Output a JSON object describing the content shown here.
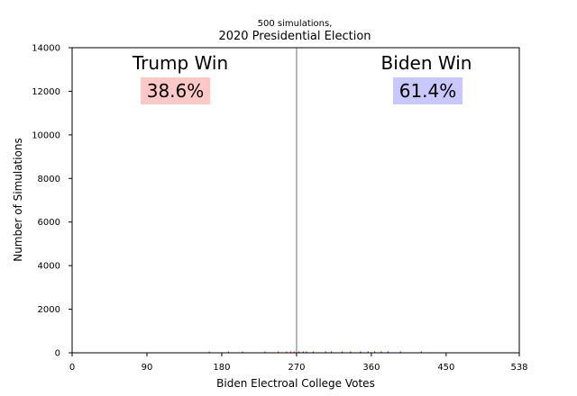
{
  "chart_data": {
    "type": "bar",
    "supertitle": "500 simulations,",
    "title": "2020 Presidential Election",
    "xlabel": "Biden Electroal College Votes",
    "ylabel": "Number of Simulations",
    "xlim": [
      0,
      538
    ],
    "ylim": [
      0,
      14000
    ],
    "xticks": [
      0,
      90,
      180,
      270,
      360,
      450,
      538
    ],
    "yticks": [
      0,
      2000,
      4000,
      6000,
      8000,
      10000,
      12000,
      14000
    ],
    "threshold": 270,
    "threshold_color": "#a0a0a0",
    "grid": false,
    "left_label": "Trump Win",
    "left_pct": "38.6%",
    "left_color": "#ffc8c8",
    "right_label": "Biden Win",
    "right_pct": "61.4%",
    "right_color": "#c8c8ff",
    "bar_color_trump": "#ff0000",
    "bar_color_biden": "#0000ff",
    "series": [
      {
        "name": "Trump",
        "color": "#ff0000",
        "x": [
          165,
          188,
          205,
          232,
          248,
          258,
          263,
          267
        ],
        "y": [
          4,
          3,
          6,
          5,
          7,
          9,
          8,
          6
        ]
      },
      {
        "name": "Biden",
        "color": "#0000ff",
        "x": [
          273,
          278,
          282,
          290,
          305,
          312,
          325,
          335,
          347,
          356,
          364,
          372,
          380,
          395,
          420
        ],
        "y": [
          12,
          8,
          10,
          9,
          11,
          8,
          12,
          7,
          10,
          9,
          8,
          6,
          5,
          4,
          3
        ]
      }
    ]
  }
}
